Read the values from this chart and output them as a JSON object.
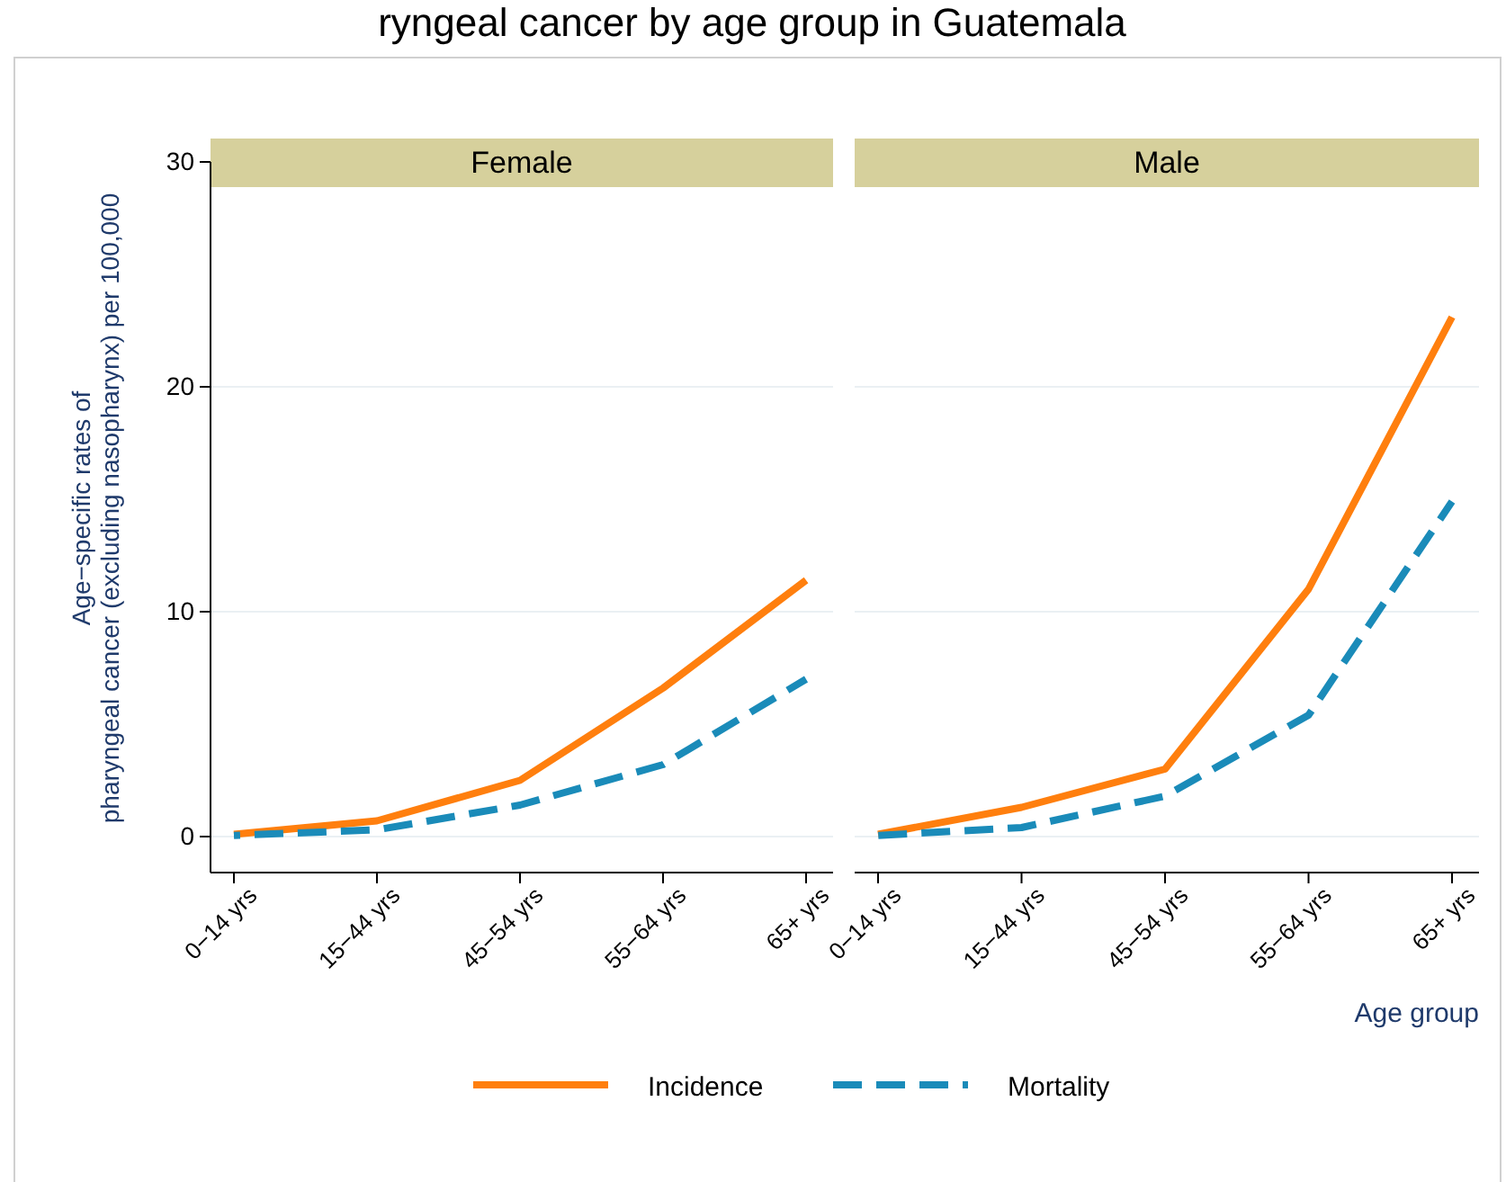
{
  "chart_data": [
    {
      "type": "line",
      "title": "ryngeal cancer by age group in Guatemala",
      "subtitle": "Female",
      "ylabel": "Age−specific rates of\npharyngeal cancer (excluding nasopharynx) per 100,000",
      "categories": [
        "0−14 yrs",
        "15−44 yrs",
        "45−54 yrs",
        "55−64 yrs",
        "65+ yrs"
      ],
      "series": [
        {
          "name": "Incidence",
          "color": "#ff7f0e",
          "line_style": "solid",
          "values": [
            0.1,
            0.7,
            2.5,
            6.6,
            11.4
          ]
        },
        {
          "name": "Mortality",
          "color": "#1a8bb9",
          "line_style": "dashed",
          "values": [
            0.05,
            0.3,
            1.4,
            3.2,
            7.0
          ]
        }
      ],
      "ylim": [
        -1.6,
        30
      ],
      "yticks": [
        0,
        10,
        20,
        30
      ],
      "grid": "y",
      "legend": "bottom"
    },
    {
      "type": "line",
      "subtitle": "Male",
      "xlabel": "Age group",
      "categories": [
        "0−14 yrs",
        "15−44 yrs",
        "45−54 yrs",
        "55−64 yrs",
        "65+ yrs"
      ],
      "series": [
        {
          "color": "#ff7f0e",
          "line_style": "solid",
          "values": [
            0.1,
            1.3,
            3.0,
            11.0,
            23.1
          ]
        },
        {
          "color": "#1a8bb9",
          "line_style": "dashed",
          "values": [
            0.05,
            0.4,
            1.8,
            5.4,
            14.9
          ]
        }
      ],
      "ylim": [
        -1.6,
        30
      ],
      "yticks": [
        0,
        10,
        20,
        30
      ],
      "grid": "y",
      "tick_labels": "x"
    }
  ]
}
